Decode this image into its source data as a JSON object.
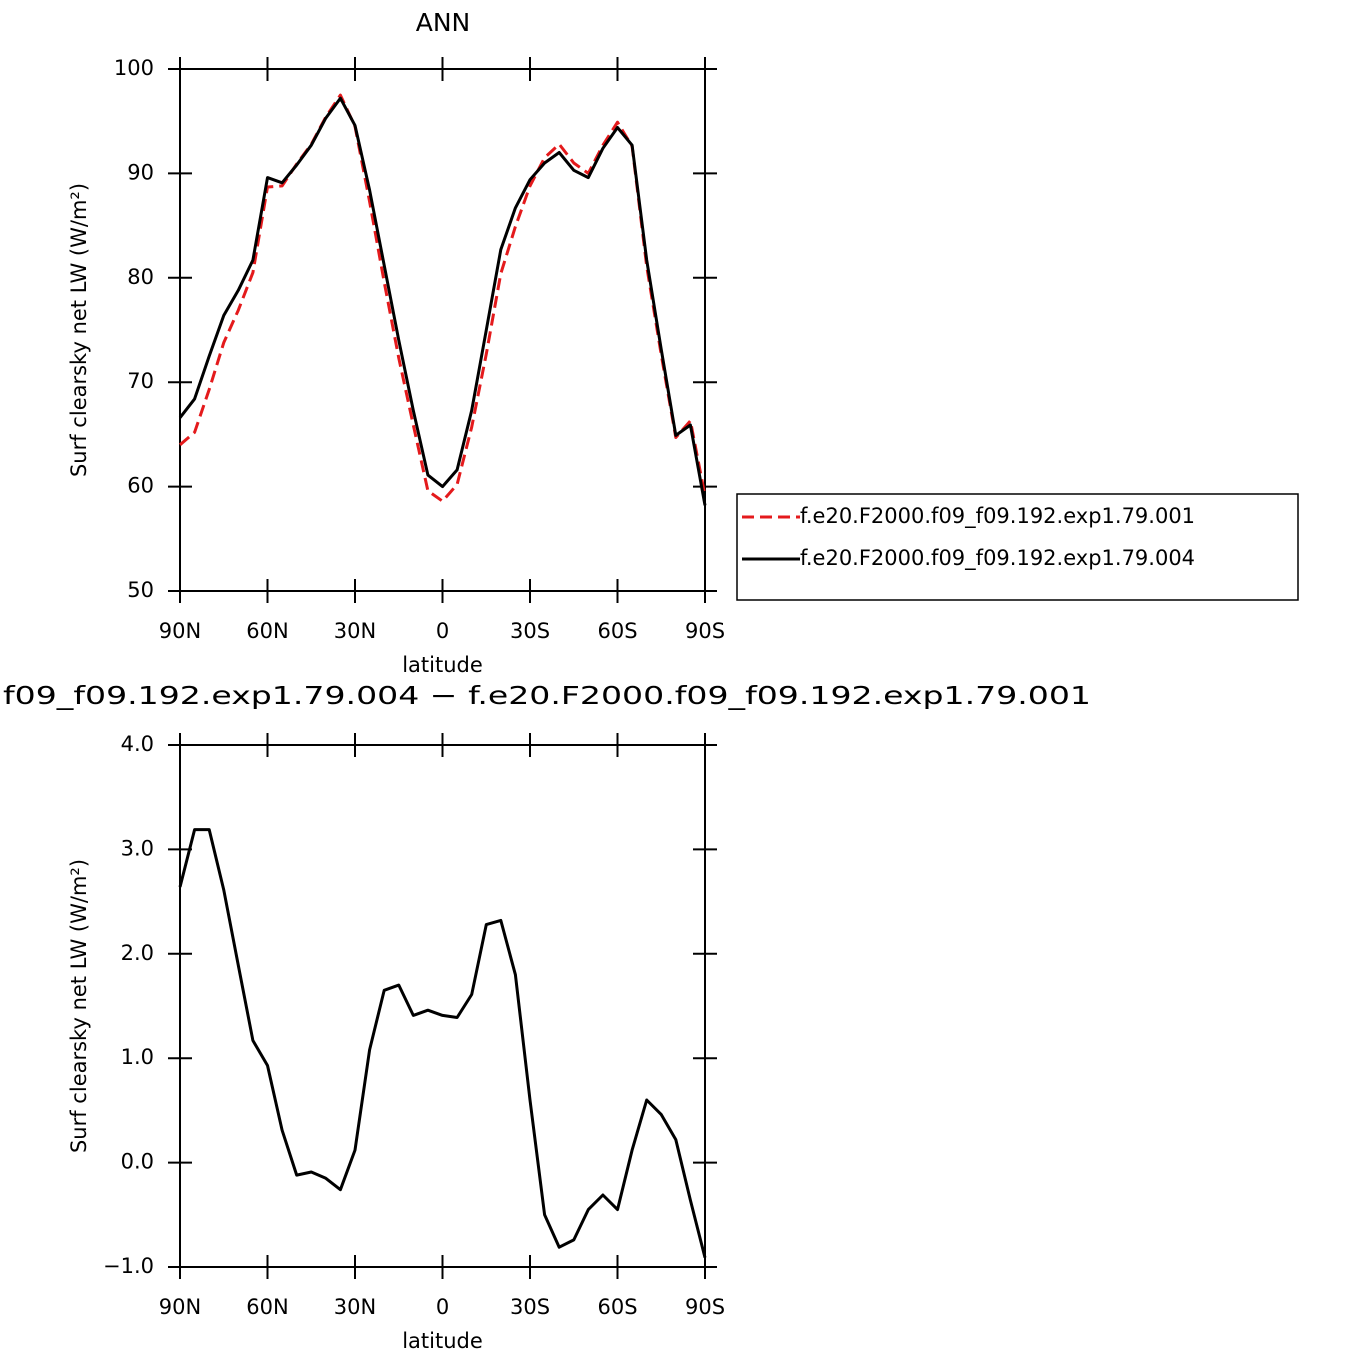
{
  "chart_data": [
    {
      "type": "line",
      "title": "ANN",
      "xlabel": "latitude",
      "ylabel": "Surf clearsky net LW (W/m²)",
      "x": [
        90,
        85,
        80,
        75,
        70,
        65,
        60,
        55,
        50,
        45,
        40,
        35,
        30,
        25,
        20,
        15,
        10,
        5,
        0,
        -5,
        -10,
        -15,
        -20,
        -25,
        -30,
        -35,
        -40,
        -45,
        -50,
        -55,
        -60,
        -65,
        -70,
        -75,
        -80,
        -85,
        -90
      ],
      "series": [
        {
          "name": "f.e20.F2000.f09_f09.192.exp1.79.001",
          "color": "#e41a1c",
          "dashed": true,
          "values": [
            64.0,
            65.2,
            69.3,
            73.8,
            76.9,
            80.5,
            88.7,
            88.8,
            90.9,
            92.8,
            95.4,
            97.5,
            94.5,
            87.3,
            79.6,
            72.3,
            65.9,
            59.6,
            58.6,
            60.2,
            65.7,
            72.7,
            80.4,
            84.9,
            88.8,
            91.5,
            92.8,
            91.0,
            90.0,
            92.7,
            94.9,
            92.6,
            81.1,
            72.6,
            64.7,
            66.3,
            59.1
          ]
        },
        {
          "name": "f.e20.F2000.f09_f09.192.exp1.79.004",
          "color": "#000000",
          "dashed": false,
          "values": [
            66.6,
            68.4,
            72.5,
            76.4,
            78.8,
            81.7,
            89.6,
            89.1,
            90.8,
            92.7,
            95.3,
            97.2,
            94.6,
            88.4,
            81.2,
            74.0,
            67.3,
            61.1,
            60.0,
            61.6,
            67.3,
            75.0,
            82.7,
            86.7,
            89.4,
            91.0,
            92.0,
            90.3,
            89.6,
            92.4,
            94.4,
            92.7,
            81.7,
            73.1,
            64.9,
            65.9,
            58.2
          ]
        }
      ],
      "xlim": [
        90,
        -90
      ],
      "xticks": [
        {
          "value": 90,
          "label": "90N"
        },
        {
          "value": 60,
          "label": "60N"
        },
        {
          "value": 30,
          "label": "30N"
        },
        0,
        {
          "value": -30,
          "label": "30S"
        },
        {
          "value": -60,
          "label": "60S"
        },
        {
          "value": -90,
          "label": "90S"
        }
      ],
      "ylim": [
        50,
        100
      ],
      "yticks": [
        50,
        60,
        70,
        80,
        90,
        100
      ],
      "legend": "right"
    },
    {
      "type": "line",
      "title": "f09_f09.192.exp1.79.004 − f.e20.F2000.f09_f09.192.exp1.79.001",
      "xlabel": "latitude",
      "ylabel": "Surf clearsky net LW (W/m²)",
      "x": [
        90,
        85,
        80,
        75,
        70,
        65,
        60,
        55,
        50,
        45,
        40,
        35,
        30,
        25,
        20,
        15,
        10,
        5,
        0,
        -5,
        -10,
        -15,
        -20,
        -25,
        -30,
        -35,
        -40,
        -45,
        -50,
        -55,
        -60,
        -65,
        -70,
        -75,
        -80,
        -85,
        -90
      ],
      "values": [
        2.64,
        3.19,
        3.19,
        2.61,
        1.89,
        1.17,
        0.93,
        0.31,
        -0.12,
        -0.09,
        -0.15,
        -0.26,
        0.12,
        1.08,
        1.65,
        1.7,
        1.41,
        1.46,
        1.41,
        1.39,
        1.61,
        2.28,
        2.32,
        1.8,
        0.6,
        -0.5,
        -0.81,
        -0.74,
        -0.45,
        -0.31,
        -0.45,
        0.12,
        0.6,
        0.46,
        0.22,
        -0.36,
        -0.91
      ],
      "color": "#000000",
      "xlim": [
        90,
        -90
      ],
      "xticks": [
        {
          "value": 90,
          "label": "90N"
        },
        {
          "value": 60,
          "label": "60N"
        },
        {
          "value": 30,
          "label": "30N"
        },
        0,
        {
          "value": -30,
          "label": "30S"
        },
        {
          "value": -60,
          "label": "60S"
        },
        {
          "value": -90,
          "label": "90S"
        }
      ],
      "ylim": [
        -1,
        4
      ],
      "yticks": [
        {
          "value": -1,
          "label": "−1.0"
        },
        {
          "value": 0,
          "label": "0.0"
        },
        {
          "value": 1,
          "label": "1.0"
        },
        {
          "value": 2,
          "label": "2.0"
        },
        {
          "value": 3,
          "label": "3.0"
        },
        {
          "value": 4,
          "label": "4.0"
        }
      ]
    }
  ]
}
